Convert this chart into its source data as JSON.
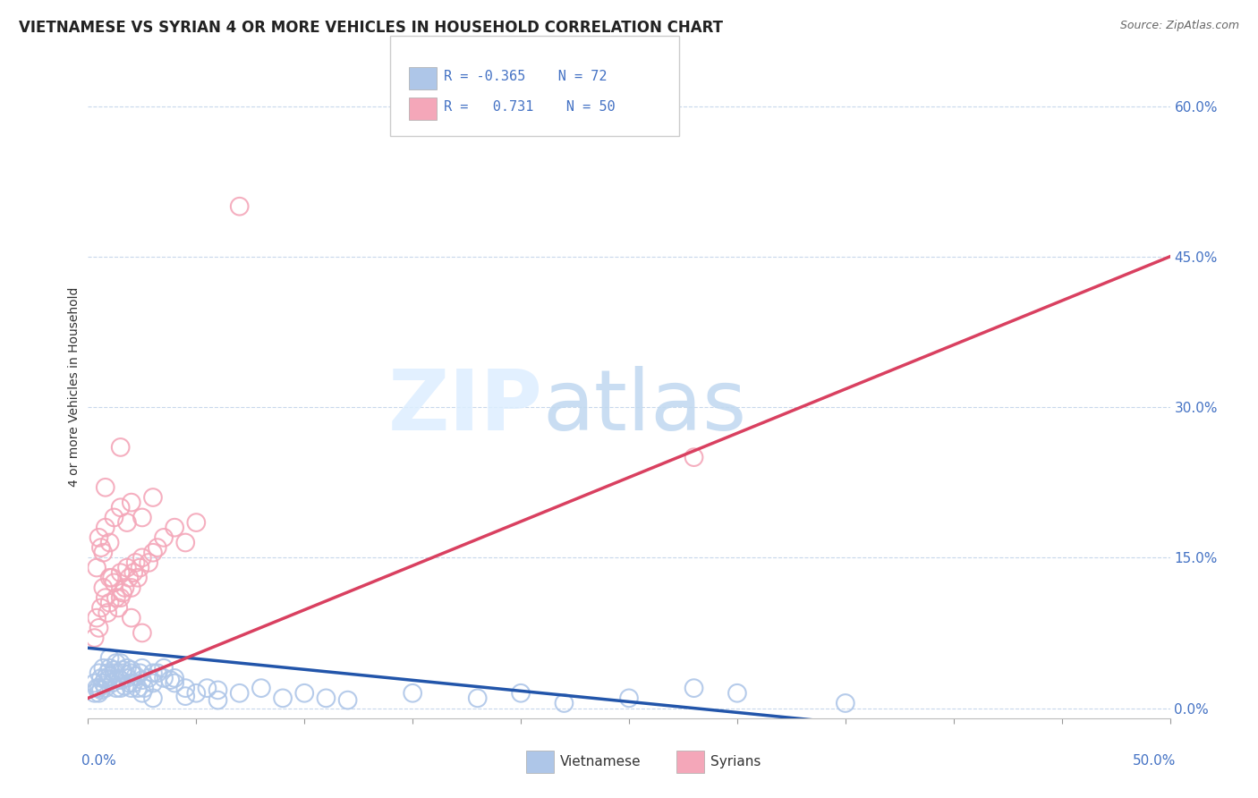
{
  "title": "VIETNAMESE VS SYRIAN 4 OR MORE VEHICLES IN HOUSEHOLD CORRELATION CHART",
  "source": "Source: ZipAtlas.com",
  "ylabel": "4 or more Vehicles in Household",
  "xlim": [
    0.0,
    50.0
  ],
  "ylim": [
    -1.0,
    65.0
  ],
  "ytick_vals": [
    0.0,
    15.0,
    30.0,
    45.0,
    60.0
  ],
  "viet_color": "#aec6e8",
  "syrian_color": "#f4a7b9",
  "viet_line_color": "#2255aa",
  "syrian_line_color": "#d94060",
  "background_color": "#ffffff",
  "grid_color": "#c8d8ec",
  "title_color": "#222222",
  "axis_color": "#4472c4",
  "viet_points": [
    [
      0.3,
      1.5
    ],
    [
      0.5,
      2.0
    ],
    [
      0.6,
      1.8
    ],
    [
      0.7,
      2.5
    ],
    [
      0.8,
      3.0
    ],
    [
      0.9,
      2.8
    ],
    [
      1.0,
      3.2
    ],
    [
      1.1,
      2.5
    ],
    [
      1.2,
      3.5
    ],
    [
      1.3,
      2.0
    ],
    [
      1.4,
      3.0
    ],
    [
      1.5,
      2.8
    ],
    [
      1.6,
      3.5
    ],
    [
      1.7,
      2.2
    ],
    [
      1.8,
      3.0
    ],
    [
      1.9,
      2.5
    ],
    [
      2.0,
      3.8
    ],
    [
      2.1,
      2.5
    ],
    [
      2.2,
      3.2
    ],
    [
      2.3,
      2.0
    ],
    [
      2.4,
      3.5
    ],
    [
      2.5,
      2.8
    ],
    [
      2.6,
      2.0
    ],
    [
      2.8,
      3.0
    ],
    [
      3.0,
      2.5
    ],
    [
      3.2,
      3.5
    ],
    [
      3.5,
      3.0
    ],
    [
      3.8,
      2.8
    ],
    [
      4.0,
      2.5
    ],
    [
      4.5,
      2.0
    ],
    [
      5.0,
      1.5
    ],
    [
      5.5,
      2.0
    ],
    [
      6.0,
      1.8
    ],
    [
      7.0,
      1.5
    ],
    [
      8.0,
      2.0
    ],
    [
      9.0,
      1.0
    ],
    [
      10.0,
      1.5
    ],
    [
      11.0,
      1.0
    ],
    [
      12.0,
      0.8
    ],
    [
      15.0,
      1.5
    ],
    [
      18.0,
      1.0
    ],
    [
      20.0,
      1.5
    ],
    [
      25.0,
      1.0
    ],
    [
      28.0,
      2.0
    ],
    [
      30.0,
      1.5
    ],
    [
      0.4,
      2.0
    ],
    [
      0.5,
      1.5
    ],
    [
      0.6,
      3.0
    ],
    [
      0.8,
      2.0
    ],
    [
      1.0,
      4.0
    ],
    [
      1.2,
      3.8
    ],
    [
      1.5,
      4.5
    ],
    [
      1.8,
      4.0
    ],
    [
      2.0,
      3.5
    ],
    [
      2.5,
      4.0
    ],
    [
      3.0,
      3.5
    ],
    [
      3.5,
      4.0
    ],
    [
      4.0,
      3.0
    ],
    [
      0.3,
      2.5
    ],
    [
      0.5,
      3.5
    ],
    [
      0.7,
      4.0
    ],
    [
      1.0,
      5.0
    ],
    [
      1.3,
      4.5
    ],
    [
      1.6,
      3.8
    ],
    [
      2.0,
      2.0
    ],
    [
      2.5,
      1.5
    ],
    [
      3.0,
      1.0
    ],
    [
      4.5,
      1.2
    ],
    [
      6.0,
      0.8
    ],
    [
      22.0,
      0.5
    ],
    [
      35.0,
      0.5
    ],
    [
      0.9,
      3.5
    ],
    [
      1.5,
      2.0
    ]
  ],
  "syrian_points": [
    [
      0.3,
      7.0
    ],
    [
      0.4,
      9.0
    ],
    [
      0.5,
      8.0
    ],
    [
      0.6,
      10.0
    ],
    [
      0.7,
      12.0
    ],
    [
      0.8,
      11.0
    ],
    [
      0.9,
      9.5
    ],
    [
      1.0,
      10.5
    ],
    [
      1.1,
      13.0
    ],
    [
      1.2,
      12.5
    ],
    [
      1.3,
      11.0
    ],
    [
      1.4,
      10.0
    ],
    [
      1.5,
      13.5
    ],
    [
      1.6,
      11.5
    ],
    [
      1.7,
      12.0
    ],
    [
      1.8,
      14.0
    ],
    [
      1.9,
      13.0
    ],
    [
      2.0,
      12.0
    ],
    [
      2.1,
      13.5
    ],
    [
      2.2,
      14.5
    ],
    [
      2.3,
      13.0
    ],
    [
      2.4,
      14.0
    ],
    [
      2.5,
      15.0
    ],
    [
      2.8,
      14.5
    ],
    [
      3.0,
      15.5
    ],
    [
      3.2,
      16.0
    ],
    [
      3.5,
      17.0
    ],
    [
      4.0,
      18.0
    ],
    [
      4.5,
      16.5
    ],
    [
      5.0,
      18.5
    ],
    [
      0.5,
      17.0
    ],
    [
      0.6,
      16.0
    ],
    [
      0.8,
      18.0
    ],
    [
      1.0,
      16.5
    ],
    [
      1.2,
      19.0
    ],
    [
      1.5,
      20.0
    ],
    [
      1.8,
      18.5
    ],
    [
      2.0,
      20.5
    ],
    [
      2.5,
      19.0
    ],
    [
      3.0,
      21.0
    ],
    [
      0.4,
      14.0
    ],
    [
      0.7,
      15.5
    ],
    [
      1.0,
      13.0
    ],
    [
      1.5,
      11.0
    ],
    [
      2.0,
      9.0
    ],
    [
      2.5,
      7.5
    ],
    [
      0.8,
      22.0
    ],
    [
      1.5,
      26.0
    ],
    [
      28.0,
      25.0
    ],
    [
      7.0,
      50.0
    ]
  ],
  "viet_trendline_x": [
    0.0,
    35.0
  ],
  "viet_trendline_y": [
    6.0,
    -1.5
  ],
  "syrian_trendline_x": [
    0.0,
    50.0
  ],
  "syrian_trendline_y": [
    1.0,
    45.0
  ]
}
